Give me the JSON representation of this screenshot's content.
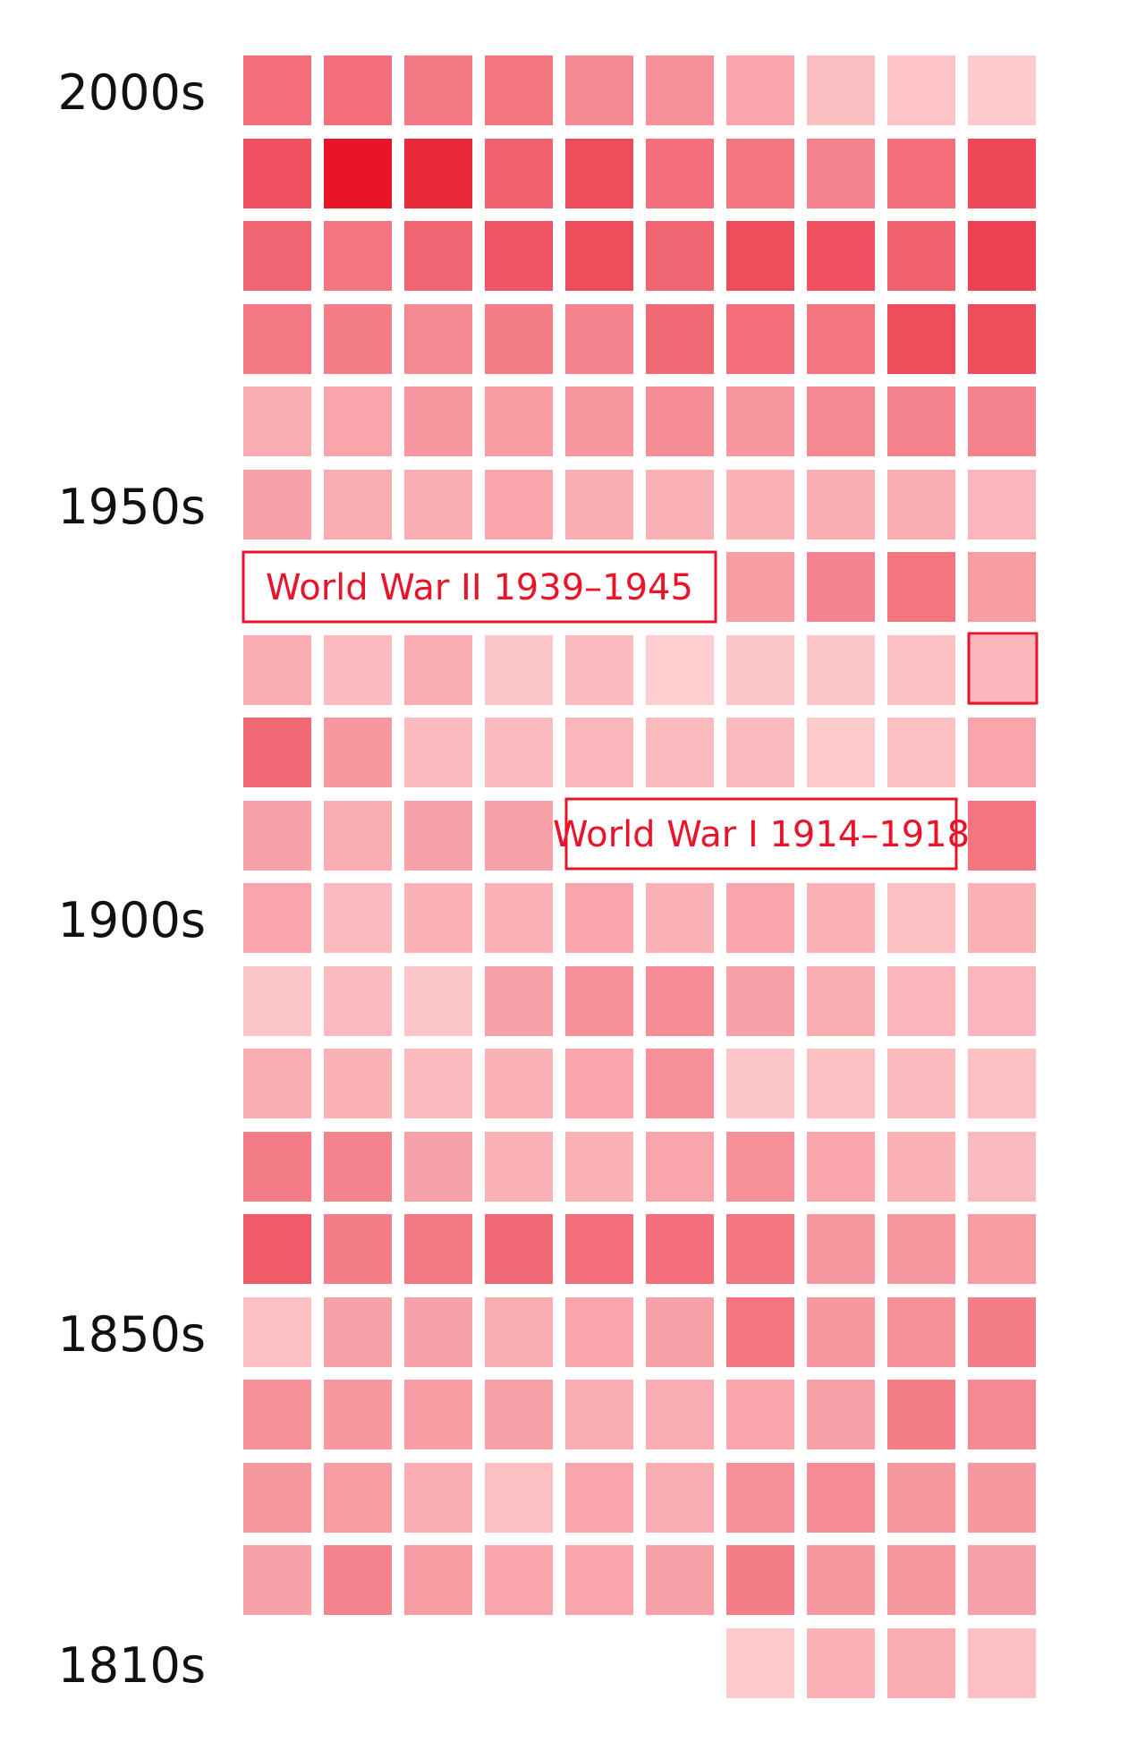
{
  "chart_data": {
    "type": "heatmap",
    "y_labels": [
      "2000s",
      "1950s",
      "1900s",
      "1850s",
      "1810s"
    ],
    "annotations": [
      {
        "text": "World War II  1939–1945"
      },
      {
        "text": "World War I  1914–1918"
      }
    ],
    "color_low": "#ffdede",
    "color_high": "#e8142a",
    "values": [
      [
        0.55,
        0.55,
        0.5,
        0.52,
        0.42,
        0.38,
        0.28,
        0.16,
        0.13,
        0.1
      ],
      [
        0.7,
        1.0,
        0.9,
        0.62,
        0.72,
        0.55,
        0.52,
        0.45,
        0.55,
        0.75
      ],
      [
        0.6,
        0.52,
        0.6,
        0.68,
        0.72,
        0.6,
        0.72,
        0.7,
        0.62,
        0.78
      ],
      [
        0.5,
        0.48,
        0.42,
        0.48,
        0.45,
        0.58,
        0.55,
        0.52,
        0.72,
        0.72
      ],
      [
        0.25,
        0.28,
        0.35,
        0.32,
        0.35,
        0.4,
        0.35,
        0.42,
        0.45,
        0.45
      ],
      [
        0.3,
        0.25,
        0.25,
        0.28,
        0.25,
        0.22,
        0.22,
        0.25,
        0.25,
        0.2
      ],
      [
        null,
        null,
        null,
        null,
        null,
        null,
        0.32,
        0.45,
        0.52,
        0.32
      ],
      [
        0.25,
        0.18,
        0.25,
        0.12,
        0.18,
        0.08,
        0.12,
        0.12,
        0.15,
        0.2
      ],
      [
        0.58,
        0.35,
        0.18,
        0.18,
        0.2,
        0.18,
        0.18,
        0.1,
        0.15,
        0.28
      ],
      [
        0.3,
        0.25,
        0.3,
        0.3,
        null,
        null,
        null,
        null,
        null,
        0.52
      ],
      [
        0.28,
        0.18,
        0.22,
        0.22,
        0.28,
        0.22,
        0.28,
        0.22,
        0.15,
        0.22
      ],
      [
        0.12,
        0.18,
        0.12,
        0.3,
        0.38,
        0.4,
        0.3,
        0.25,
        0.2,
        0.2
      ],
      [
        0.25,
        0.22,
        0.18,
        0.22,
        0.28,
        0.38,
        0.12,
        0.15,
        0.18,
        0.15
      ],
      [
        0.48,
        0.45,
        0.3,
        0.22,
        0.22,
        0.28,
        0.38,
        0.28,
        0.22,
        0.18
      ],
      [
        0.65,
        0.48,
        0.5,
        0.58,
        0.55,
        0.55,
        0.52,
        0.35,
        0.35,
        0.32
      ],
      [
        0.15,
        0.3,
        0.3,
        0.25,
        0.28,
        0.3,
        0.52,
        0.35,
        0.38,
        0.48
      ],
      [
        0.38,
        0.35,
        0.32,
        0.3,
        0.25,
        0.25,
        0.28,
        0.3,
        0.48,
        0.42
      ],
      [
        0.35,
        0.32,
        0.25,
        0.15,
        0.28,
        0.25,
        0.38,
        0.4,
        0.35,
        0.35
      ],
      [
        0.3,
        0.45,
        0.32,
        0.28,
        0.28,
        0.3,
        0.48,
        0.35,
        0.35,
        0.3
      ],
      [
        null,
        null,
        null,
        null,
        null,
        null,
        0.1,
        0.22,
        0.25,
        0.15
      ]
    ]
  }
}
